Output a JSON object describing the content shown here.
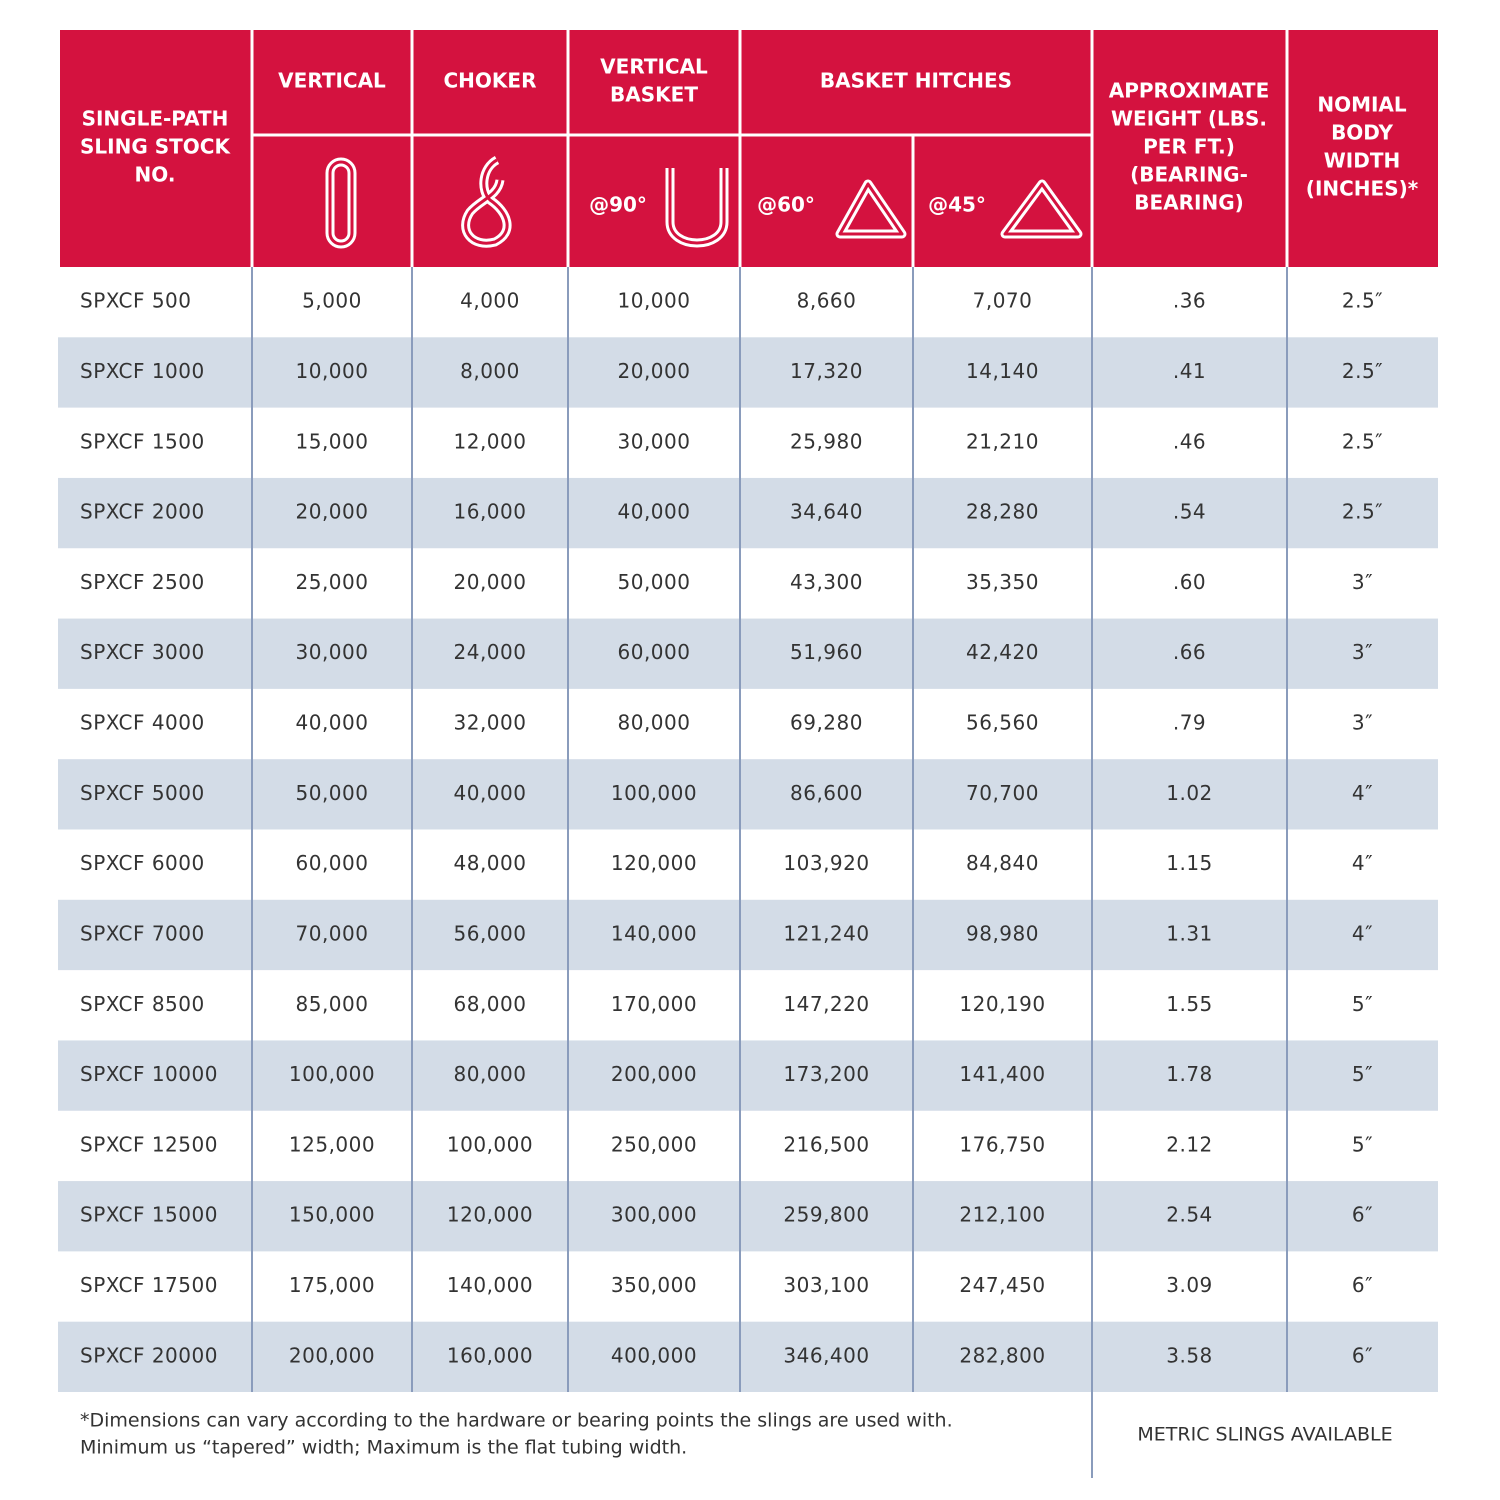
{
  "header": {
    "stock": [
      "SINGLE-PATH",
      "SLING STOCK",
      "NO."
    ],
    "vertical": [
      "VERTICAL"
    ],
    "choker": [
      "CHOKER"
    ],
    "vertical_basket": [
      "VERTICAL",
      "BASKET"
    ],
    "basket_hitches": [
      "BASKET HITCHES"
    ],
    "weight": [
      "APPROXIMATE",
      "WEIGHT (LBS.",
      "PER FT.)",
      "(BEARING-",
      "BEARING)"
    ],
    "width": [
      "NOMIAL",
      "BODY",
      "WIDTH",
      "(INCHES)*"
    ],
    "angles": [
      "@90°",
      "@60°",
      "@45°"
    ]
  },
  "table": {
    "rows": [
      [
        "SPXCF 500",
        "5,000",
        "4,000",
        "10,000",
        "8,660",
        "7,070",
        ".36",
        "2.5″"
      ],
      [
        "SPXCF 1000",
        "10,000",
        "8,000",
        "20,000",
        "17,320",
        "14,140",
        ".41",
        "2.5″"
      ],
      [
        "SPXCF 1500",
        "15,000",
        "12,000",
        "30,000",
        "25,980",
        "21,210",
        ".46",
        "2.5″"
      ],
      [
        "SPXCF 2000",
        "20,000",
        "16,000",
        "40,000",
        "34,640",
        "28,280",
        ".54",
        "2.5″"
      ],
      [
        "SPXCF 2500",
        "25,000",
        "20,000",
        "50,000",
        "43,300",
        "35,350",
        ".60",
        "3″"
      ],
      [
        "SPXCF 3000",
        "30,000",
        "24,000",
        "60,000",
        "51,960",
        "42,420",
        ".66",
        "3″"
      ],
      [
        "SPXCF 4000",
        "40,000",
        "32,000",
        "80,000",
        "69,280",
        "56,560",
        ".79",
        "3″"
      ],
      [
        "SPXCF 5000",
        "50,000",
        "40,000",
        "100,000",
        "86,600",
        "70,700",
        "1.02",
        "4″"
      ],
      [
        "SPXCF 6000",
        "60,000",
        "48,000",
        "120,000",
        "103,920",
        "84,840",
        "1.15",
        "4″"
      ],
      [
        "SPXCF 7000",
        "70,000",
        "56,000",
        "140,000",
        "121,240",
        "98,980",
        "1.31",
        "4″"
      ],
      [
        "SPXCF 8500",
        "85,000",
        "68,000",
        "170,000",
        "147,220",
        "120,190",
        "1.55",
        "5″"
      ],
      [
        "SPXCF 10000",
        "100,000",
        "80,000",
        "200,000",
        "173,200",
        "141,400",
        "1.78",
        "5″"
      ],
      [
        "SPXCF 12500",
        "125,000",
        "100,000",
        "250,000",
        "216,500",
        "176,750",
        "2.12",
        "5″"
      ],
      [
        "SPXCF 15000",
        "150,000",
        "120,000",
        "300,000",
        "259,800",
        "212,100",
        "2.54",
        "6″"
      ],
      [
        "SPXCF 17500",
        "175,000",
        "140,000",
        "350,000",
        "303,100",
        "247,450",
        "3.09",
        "6″"
      ],
      [
        "SPXCF 20000",
        "200,000",
        "160,000",
        "400,000",
        "346,400",
        "282,800",
        "3.58",
        "6″"
      ]
    ]
  },
  "footer": {
    "note": [
      "*Dimensions can vary according to the hardware or bearing points the slings are used with.",
      "Minimum us “tapered” width; Maximum is the flat tubing width."
    ],
    "metric": "METRIC SLINGS AVAILABLE"
  }
}
